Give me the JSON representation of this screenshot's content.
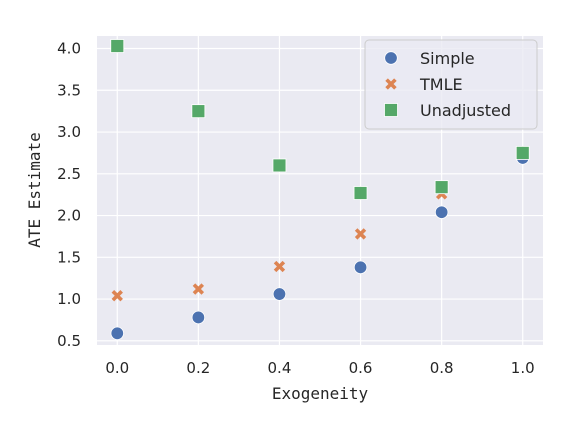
{
  "chart_data": {
    "type": "scatter",
    "title": "",
    "xlabel": "Exogeneity",
    "ylabel": "ATE Estimate",
    "xlim": [
      -0.05,
      1.05
    ],
    "ylim": [
      0.45,
      4.15
    ],
    "xticks": [
      "0.0",
      "0.2",
      "0.4",
      "0.6",
      "0.8",
      "1.0"
    ],
    "yticks": [
      "0.5",
      "1.0",
      "1.5",
      "2.0",
      "2.5",
      "3.0",
      "3.5",
      "4.0"
    ],
    "grid": true,
    "legend_position": "top-right",
    "x": [
      0.0,
      0.2,
      0.4,
      0.6,
      0.8,
      1.0
    ],
    "series": [
      {
        "name": "Simple",
        "marker": "circle",
        "color": "#4c72b0",
        "values": [
          0.59,
          0.78,
          1.06,
          1.38,
          2.04,
          2.69
        ]
      },
      {
        "name": "TMLE",
        "marker": "x",
        "color": "#dd8452",
        "values": [
          1.04,
          1.12,
          1.39,
          1.78,
          2.26,
          2.73
        ]
      },
      {
        "name": "Unadjusted",
        "marker": "square",
        "color": "#55a868",
        "values": [
          4.03,
          3.25,
          2.6,
          2.27,
          2.34,
          2.75
        ]
      }
    ],
    "plot_background": "#eaeaf2"
  }
}
